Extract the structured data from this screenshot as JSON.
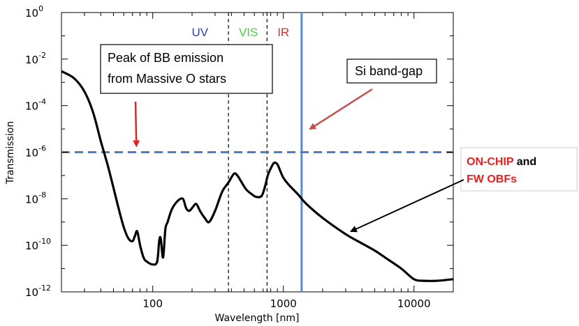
{
  "chart_data": {
    "type": "line",
    "xscale": "log",
    "yscale": "log",
    "xlim": [
      20,
      20000
    ],
    "ylim": [
      1e-12,
      1
    ],
    "xlabel": "Wavelength [nm]",
    "ylabel": "Transmission",
    "x_ticks": [
      {
        "value": 100,
        "label": "100"
      },
      {
        "value": 1000,
        "label": "1000"
      },
      {
        "value": 10000,
        "label": "10000"
      }
    ],
    "y_ticks": [
      {
        "value": 1,
        "base": "10",
        "exp": "0"
      },
      {
        "value": 0.01,
        "base": "10",
        "exp": "-2"
      },
      {
        "value": 0.0001,
        "base": "10",
        "exp": "-4"
      },
      {
        "value": 1e-06,
        "base": "10",
        "exp": "-6"
      },
      {
        "value": 1e-08,
        "base": "10",
        "exp": "-8"
      },
      {
        "value": 1e-10,
        "base": "10",
        "exp": "-10"
      },
      {
        "value": 1e-12,
        "base": "10",
        "exp": "-12"
      }
    ],
    "series": [
      {
        "color": "#000000",
        "x": [
          20,
          25,
          30,
          35,
          40,
          45,
          50,
          55,
          60,
          65,
          70,
          73,
          76,
          80,
          85,
          90,
          100,
          108,
          112,
          115,
          120,
          125,
          130,
          140,
          155,
          170,
          180,
          190,
          200,
          215,
          230,
          250,
          270,
          300,
          340,
          380,
          420,
          450,
          480,
          520,
          570,
          620,
          680,
          720,
          760,
          800,
          850,
          900,
          950,
          1000,
          1100,
          1300,
          1500,
          2000,
          3000,
          4000,
          5000,
          6000,
          8000,
          10000,
          12000,
          15000,
          20000
        ],
        "y": [
          0.003,
          0.0015,
          0.0004,
          5e-05,
          3e-06,
          3e-07,
          3e-08,
          3.5e-09,
          6e-10,
          2e-10,
          1.5e-10,
          2.5e-10,
          4e-10,
          1e-10,
          3e-11,
          2e-11,
          1.5e-11,
          2e-11,
          1.5e-10,
          2e-10,
          3e-11,
          5e-10,
          1e-09,
          3.5e-09,
          8e-09,
          1e-08,
          4e-09,
          3e-09,
          4e-09,
          6e-09,
          3e-09,
          1.5e-09,
          1e-09,
          3e-09,
          2e-08,
          5e-08,
          1.2e-07,
          9e-08,
          5e-08,
          2.5e-08,
          1.6e-08,
          1.2e-08,
          1.3e-08,
          3e-08,
          1e-07,
          2e-07,
          3.5e-07,
          3e-07,
          1.5e-07,
          8e-08,
          4e-08,
          1.5e-08,
          6e-09,
          1.5e-09,
          3e-10,
          1.2e-10,
          6e-11,
          3e-11,
          1e-11,
          3.5e-12,
          3e-12,
          3e-12,
          3.5e-12
        ]
      }
    ],
    "hlines": [
      {
        "y": 1e-06,
        "color": "#4a7fc0",
        "style": "dashed"
      }
    ],
    "vlines": [
      {
        "x": 380,
        "color": "#000000",
        "style": "dashed"
      },
      {
        "x": 750,
        "color": "#000000",
        "style": "dashed"
      },
      {
        "x": 1380,
        "color": "#5b8cc7",
        "style": "solid"
      }
    ],
    "regions": [
      {
        "label": "UV",
        "color": "#2f3fb0",
        "x": 230
      },
      {
        "label": "VIS",
        "color": "#44d244",
        "x": 540
      },
      {
        "label": "IR",
        "color": "#d03030",
        "x": 1000
      }
    ],
    "annotations": [
      {
        "text_lines": [
          "Peak of BB emission",
          "from Massive O stars"
        ],
        "boxed": true,
        "arrow_color": "#e82020",
        "arrow_to": {
          "x": 75,
          "y": 1e-06
        }
      },
      {
        "text_lines": [
          "Si band-gap"
        ],
        "boxed": true,
        "arrow_color": "#c05050",
        "arrow_to": {
          "x": 1600,
          "y": 1e-05
        }
      },
      {
        "text_lines": [
          [
            "ON-CHIP",
            " and"
          ],
          [
            "FW OBFs"
          ]
        ],
        "boxed": true,
        "arrow_color": "#000000",
        "arrow_to": {
          "x": 3300,
          "y": 4e-10
        }
      }
    ]
  }
}
